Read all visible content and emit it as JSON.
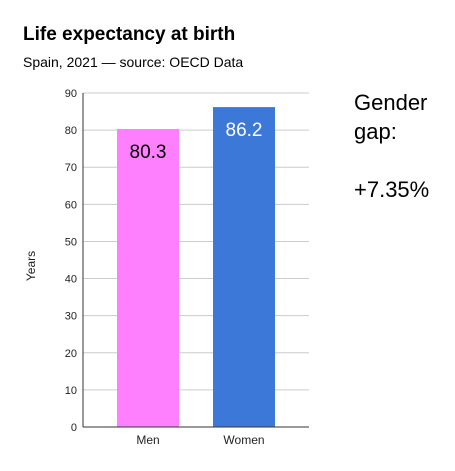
{
  "chart_data": {
    "type": "bar",
    "title": "Life expectancy at birth",
    "subtitle": "Spain, 2021 — source: OECD Data",
    "categories": [
      "Men",
      "Women"
    ],
    "values": [
      80.3,
      86.2
    ],
    "data_labels": [
      "80.3",
      "86.2"
    ],
    "colors": [
      "#ff80ff",
      "#3c78d8"
    ],
    "xlabel": "",
    "ylabel": "Years",
    "ylim": [
      0,
      90
    ],
    "yticks": [
      0,
      10,
      20,
      30,
      40,
      50,
      60,
      70,
      80,
      90
    ],
    "grid": true,
    "legend": "none"
  },
  "annotation": {
    "lines": [
      "Gender",
      "gap:",
      "+7.35%"
    ]
  }
}
